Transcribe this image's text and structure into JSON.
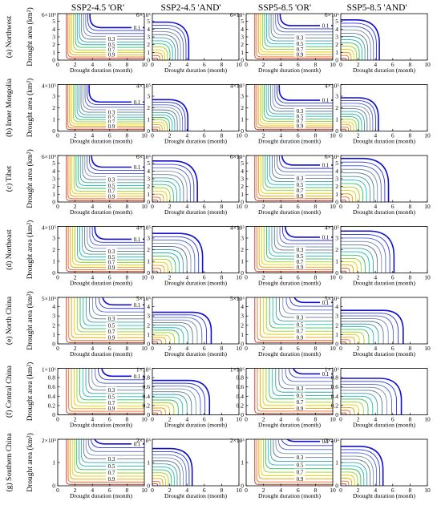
{
  "figure": {
    "column_titles": [
      "SSP2-4.5  'OR'",
      "SSP2-4.5  'AND'",
      "SSP5-8.5  'OR'",
      "SSP5-8.5  'AND'"
    ],
    "xlabel": "Drought duration (month)",
    "ylabel": "Drought area (km²)",
    "xticks": [
      "0",
      "2",
      "4",
      "6",
      "8",
      "10"
    ],
    "contour_labels": [
      "0.1",
      "0.3",
      "0.5",
      "0.7",
      "0.9"
    ],
    "contour_colors": [
      "#1010d0",
      "#3030e0",
      "#5068d0",
      "#8090b0",
      "#607890",
      "#40a0a0",
      "#20b8c0",
      "#30c060",
      "#9ad020",
      "#e0d000",
      "#f0a000",
      "#e07020",
      "#c03020"
    ]
  },
  "chart_data": [
    {
      "type": "contour",
      "region": "Northwest",
      "row_label": "(a)  Northwest",
      "y_multiplier": "6×10⁵",
      "yticks": [
        "0",
        "1",
        "2",
        "3",
        "4",
        "5"
      ],
      "xlim": [
        0,
        10
      ],
      "ylim": [
        0,
        6
      ],
      "levels": [
        0.1,
        0.3,
        0.5,
        0.7,
        0.9
      ],
      "and_outer_x": 4.2,
      "and_outer_y": 4.9,
      "or_corner_x": 3.6,
      "or_corner_y": 4.2
    },
    {
      "type": "contour",
      "region": "Inner Mongolia",
      "row_label": "(b)  Inner Mongolia",
      "y_multiplier": "4×10⁵",
      "yticks": [
        "0",
        "1",
        "2",
        "3"
      ],
      "xlim": [
        0,
        10
      ],
      "ylim": [
        0,
        4
      ],
      "levels": [
        0.1,
        0.3,
        0.5,
        0.7,
        0.9
      ],
      "and_outer_x": 4.1,
      "and_outer_y": 2.7,
      "or_corner_x": 3.5,
      "or_corner_y": 2.5
    },
    {
      "type": "contour",
      "region": "Tibet",
      "row_label": "(c)  Tibet",
      "y_multiplier": "6×10⁵",
      "yticks": [
        "0",
        "1",
        "2",
        "3",
        "4",
        "5"
      ],
      "xlim": [
        0,
        10
      ],
      "ylim": [
        0,
        6
      ],
      "levels": [
        0.1,
        0.3,
        0.5,
        0.7,
        0.9
      ],
      "and_outer_x": 5.2,
      "and_outer_y": 5.3,
      "or_corner_x": 3.8,
      "or_corner_y": 4.5
    },
    {
      "type": "contour",
      "region": "Northeast",
      "row_label": "(d)  Northeast",
      "y_multiplier": "4×10⁵",
      "yticks": [
        "0",
        "1",
        "2",
        "3"
      ],
      "xlim": [
        0,
        10
      ],
      "ylim": [
        0,
        4
      ],
      "levels": [
        0.1,
        0.3,
        0.5,
        0.7,
        0.9
      ],
      "and_outer_x": 5.8,
      "and_outer_y": 3.4,
      "or_corner_x": 4.2,
      "or_corner_y": 2.9
    },
    {
      "type": "contour",
      "region": "North China",
      "row_label": "(e)  North China",
      "y_multiplier": "5×10⁵",
      "yticks": [
        "0",
        "1",
        "2",
        "3",
        "4"
      ],
      "xlim": [
        0,
        10
      ],
      "ylim": [
        0,
        5
      ],
      "levels": [
        0.1,
        0.3,
        0.5,
        0.7,
        0.9
      ],
      "and_outer_x": 6.8,
      "and_outer_y": 3.4,
      "or_corner_x": 5.1,
      "or_corner_y": 4.2
    },
    {
      "type": "contour",
      "region": "Central China",
      "row_label": "(f)  Central China",
      "y_multiplier": "1×10⁶",
      "yticks": [
        "0",
        "0.2",
        "0.4",
        "0.6",
        "0.8"
      ],
      "xlim": [
        0,
        10
      ],
      "ylim": [
        0,
        1
      ],
      "levels": [
        0.1,
        0.3,
        0.5,
        0.7,
        0.9
      ],
      "and_outer_x": 6.6,
      "and_outer_y": 0.74,
      "or_corner_x": 5.0,
      "or_corner_y": 0.83
    },
    {
      "type": "contour",
      "region": "Southern China",
      "row_label": "(g)  Southern China",
      "y_multiplier": "2×10⁵",
      "yticks": [
        "0",
        "1"
      ],
      "xlim": [
        0,
        10
      ],
      "ylim": [
        0,
        2
      ],
      "levels": [
        0.1,
        0.3,
        0.5,
        0.7,
        0.9
      ],
      "and_outer_x": 4.6,
      "and_outer_y": 1.6,
      "or_corner_x": 4.0,
      "or_corner_y": 1.8
    }
  ]
}
